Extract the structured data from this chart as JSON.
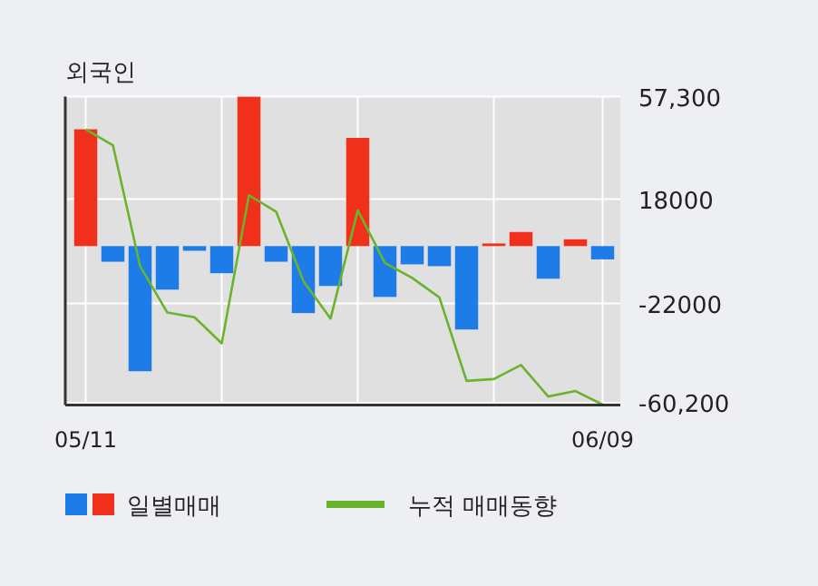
{
  "chart_data": {
    "type": "bar",
    "title": "외국인",
    "categories": [
      "05/11",
      null,
      null,
      null,
      null,
      null,
      null,
      null,
      null,
      null,
      null,
      null,
      null,
      null,
      null,
      null,
      null,
      null,
      null,
      "06/09"
    ],
    "series": [
      {
        "name": "일별매매",
        "colors": [
          "#f0301a",
          "#1e7ce8",
          "#1e7ce8",
          "#1e7ce8",
          "#1e7ce8",
          "#1e7ce8",
          "#f0301a",
          "#1e7ce8",
          "#1e7ce8",
          "#1e7ce8",
          "#f0301a",
          "#1e7ce8",
          "#1e7ce8",
          "#1e7ce8",
          "#1e7ce8",
          "#f0301a",
          "#f0301a",
          "#1e7ce8",
          "#f0301a",
          "#1e7ce8"
        ],
        "values": [
          44800,
          -6000,
          -48000,
          -16700,
          -1800,
          -10400,
          57300,
          -6000,
          -25700,
          -15300,
          41500,
          -19500,
          -7000,
          -7700,
          -32000,
          1000,
          5400,
          -12500,
          2600,
          -5100
        ]
      },
      {
        "name": "누적 매매동향",
        "type": "line",
        "color": "#6ab42d",
        "values": [
          44800,
          38700,
          -7700,
          -25500,
          -27300,
          -37300,
          19500,
          13200,
          -13400,
          -27800,
          13700,
          -6500,
          -12200,
          -19700,
          -51700,
          -51000,
          -45600,
          -57700,
          -55600,
          -60800
        ]
      }
    ],
    "ylim": [
      -61000,
      57300
    ],
    "yticks": [
      {
        "value": 57300,
        "label": "57,300"
      },
      18000,
      -22000,
      {
        "value": -60200,
        "label": "-60,200"
      }
    ],
    "grid": true,
    "legend": "bottom"
  }
}
